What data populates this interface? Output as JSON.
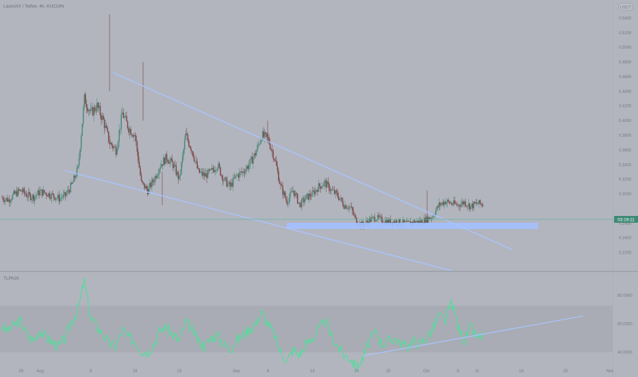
{
  "header": {
    "symbol_title": "LaunchX / Tether, 4h, KUCOIN",
    "currency_badge": "USDT"
  },
  "colors": {
    "background": "#b2b5be",
    "candle_up": "#4e8a7b",
    "candle_down": "#7d4a4a",
    "trendline": "#a9c4ff",
    "support_zone": "#a3c1ff",
    "indicator_line": "#4be09a",
    "indicator_band": "#a9acb4",
    "price_line": "#5fb49c",
    "current_price_tag": "#3f8a76"
  },
  "current_price_tag": "03:19:11",
  "indicator_label": "TLPh20",
  "chart_data": [
    {
      "type": "candlestick",
      "title": "LaunchX / Tether, 4h, KUCOIN",
      "ylim": [
        0.2,
        0.56
      ],
      "y_ticks": [
        "0.5400",
        "0.5200",
        "0.5000",
        "0.4800",
        "0.4600",
        "0.4400",
        "0.4200",
        "0.4000",
        "0.3800",
        "0.3600",
        "0.3400",
        "0.3200",
        "0.3000",
        "0.2600",
        "0.2400",
        "0.2200"
      ],
      "x_ticks": [
        "29",
        "Aug",
        "9",
        "16",
        "23",
        "Sep",
        "6",
        "13",
        "20",
        "25",
        "Oct",
        "8",
        "11",
        "18",
        "25",
        "Nov"
      ],
      "series": [
        {
          "values": [
            {
              "x": "Jul 26",
              "close": 0.295
            },
            {
              "x": "Jul 27",
              "close": 0.292
            },
            {
              "x": "Jul 28",
              "close": 0.3
            },
            {
              "x": "Jul 29",
              "close": 0.305
            },
            {
              "x": "Jul 30",
              "close": 0.298
            },
            {
              "x": "Jul 31",
              "close": 0.296
            },
            {
              "x": "Aug 1",
              "close": 0.303
            },
            {
              "x": "Aug 2",
              "close": 0.301
            },
            {
              "x": "Aug 3",
              "close": 0.298
            },
            {
              "x": "Aug 4",
              "close": 0.294
            },
            {
              "x": "Aug 5",
              "close": 0.298
            },
            {
              "x": "Aug 6",
              "close": 0.312
            },
            {
              "x": "Aug 7",
              "close": 0.335
            },
            {
              "x": "Aug 8",
              "close": 0.43
            },
            {
              "x": "Aug 9",
              "close": 0.41
            },
            {
              "x": "Aug 10",
              "close": 0.42
            },
            {
              "x": "Aug 11",
              "close": 0.4
            },
            {
              "x": "Aug 12",
              "close": 0.37
            },
            {
              "x": "Aug 13",
              "close": 0.36
            },
            {
              "x": "Aug 14",
              "close": 0.41
            },
            {
              "x": "Aug 15",
              "close": 0.39
            },
            {
              "x": "Aug 16",
              "close": 0.38
            },
            {
              "x": "Aug 17",
              "close": 0.315
            },
            {
              "x": "Aug 18",
              "close": 0.305
            },
            {
              "x": "Aug 19",
              "close": 0.32
            },
            {
              "x": "Aug 20",
              "close": 0.34
            },
            {
              "x": "Aug 21",
              "close": 0.35
            },
            {
              "x": "Aug 22",
              "close": 0.34
            },
            {
              "x": "Aug 23",
              "close": 0.32
            },
            {
              "x": "Aug 24",
              "close": 0.38
            },
            {
              "x": "Aug 25",
              "close": 0.36
            },
            {
              "x": "Aug 26",
              "close": 0.33
            },
            {
              "x": "Aug 27",
              "close": 0.325
            },
            {
              "x": "Aug 28",
              "close": 0.33
            },
            {
              "x": "Aug 29",
              "close": 0.34
            },
            {
              "x": "Aug 30",
              "close": 0.32
            },
            {
              "x": "Aug 31",
              "close": 0.31
            },
            {
              "x": "Sep 1",
              "close": 0.325
            },
            {
              "x": "Sep 2",
              "close": 0.33
            },
            {
              "x": "Sep 3",
              "close": 0.34
            },
            {
              "x": "Sep 4",
              "close": 0.355
            },
            {
              "x": "Sep 5",
              "close": 0.38
            },
            {
              "x": "Sep 6",
              "close": 0.375
            },
            {
              "x": "Sep 7",
              "close": 0.35
            },
            {
              "x": "Sep 8",
              "close": 0.31
            },
            {
              "x": "Sep 9",
              "close": 0.29
            },
            {
              "x": "Sep 10",
              "close": 0.305
            },
            {
              "x": "Sep 11",
              "close": 0.285
            },
            {
              "x": "Sep 12",
              "close": 0.295
            },
            {
              "x": "Sep 13",
              "close": 0.3
            },
            {
              "x": "Sep 14",
              "close": 0.31
            },
            {
              "x": "Sep 15",
              "close": 0.315
            },
            {
              "x": "Sep 16",
              "close": 0.305
            },
            {
              "x": "Sep 17",
              "close": 0.298
            },
            {
              "x": "Sep 18",
              "close": 0.285
            },
            {
              "x": "Sep 19",
              "close": 0.282
            },
            {
              "x": "Sep 20",
              "close": 0.262
            },
            {
              "x": "Sep 21",
              "close": 0.258
            },
            {
              "x": "Sep 22",
              "close": 0.264
            },
            {
              "x": "Sep 23",
              "close": 0.268
            },
            {
              "x": "Sep 24",
              "close": 0.264
            },
            {
              "x": "Sep 25",
              "close": 0.262
            },
            {
              "x": "Sep 26",
              "close": 0.263
            },
            {
              "x": "Sep 27",
              "close": 0.261
            },
            {
              "x": "Sep 28",
              "close": 0.259
            },
            {
              "x": "Sep 29",
              "close": 0.262
            },
            {
              "x": "Sep 30",
              "close": 0.262
            },
            {
              "x": "Oct 1",
              "close": 0.265
            },
            {
              "x": "Oct 2",
              "close": 0.27
            },
            {
              "x": "Oct 3",
              "close": 0.285
            },
            {
              "x": "Oct 4",
              "close": 0.29
            },
            {
              "x": "Oct 5",
              "close": 0.287
            },
            {
              "x": "Oct 6",
              "close": 0.285
            },
            {
              "x": "Oct 7",
              "close": 0.289
            },
            {
              "x": "Oct 8",
              "close": 0.283
            },
            {
              "x": "Oct 9",
              "close": 0.287
            },
            {
              "x": "Oct 10",
              "close": 0.286
            }
          ]
        }
      ]
    },
    {
      "type": "line",
      "title": "TLPh20",
      "ylim": [
        25,
        95
      ],
      "y_ticks": [
        "80.0000",
        "60.0000",
        "40.0000",
        "20.0000"
      ],
      "bands": [
        30,
        70
      ],
      "series": [
        {
          "values": [
            {
              "x": "Jul 26",
              "y": 58
            },
            {
              "x": "Jul 27",
              "y": 55
            },
            {
              "x": "Jul 28",
              "y": 60
            },
            {
              "x": "Jul 29",
              "y": 62
            },
            {
              "x": "Jul 30",
              "y": 52
            },
            {
              "x": "Jul 31",
              "y": 48
            },
            {
              "x": "Aug 1",
              "y": 56
            },
            {
              "x": "Aug 2",
              "y": 50
            },
            {
              "x": "Aug 3",
              "y": 47
            },
            {
              "x": "Aug 4",
              "y": 44
            },
            {
              "x": "Aug 5",
              "y": 50
            },
            {
              "x": "Aug 6",
              "y": 62
            },
            {
              "x": "Aug 7",
              "y": 70
            },
            {
              "x": "Aug 8",
              "y": 90
            },
            {
              "x": "Aug 9",
              "y": 64
            },
            {
              "x": "Aug 10",
              "y": 58
            },
            {
              "x": "Aug 11",
              "y": 52
            },
            {
              "x": "Aug 12",
              "y": 46
            },
            {
              "x": "Aug 13",
              "y": 44
            },
            {
              "x": "Aug 14",
              "y": 56
            },
            {
              "x": "Aug 15",
              "y": 50
            },
            {
              "x": "Aug 16",
              "y": 48
            },
            {
              "x": "Aug 17",
              "y": 41
            },
            {
              "x": "Aug 18",
              "y": 40
            },
            {
              "x": "Aug 19",
              "y": 46
            },
            {
              "x": "Aug 20",
              "y": 56
            },
            {
              "x": "Aug 21",
              "y": 58
            },
            {
              "x": "Aug 22",
              "y": 52
            },
            {
              "x": "Aug 23",
              "y": 48
            },
            {
              "x": "Aug 24",
              "y": 62
            },
            {
              "x": "Aug 25",
              "y": 56
            },
            {
              "x": "Aug 26",
              "y": 48
            },
            {
              "x": "Aug 27",
              "y": 44
            },
            {
              "x": "Aug 28",
              "y": 50
            },
            {
              "x": "Aug 29",
              "y": 52
            },
            {
              "x": "Aug 30",
              "y": 46
            },
            {
              "x": "Aug 31",
              "y": 42
            },
            {
              "x": "Sep 1",
              "y": 48
            },
            {
              "x": "Sep 2",
              "y": 52
            },
            {
              "x": "Sep 3",
              "y": 56
            },
            {
              "x": "Sep 4",
              "y": 60
            },
            {
              "x": "Sep 5",
              "y": 68
            },
            {
              "x": "Sep 6",
              "y": 60
            },
            {
              "x": "Sep 7",
              "y": 52
            },
            {
              "x": "Sep 8",
              "y": 40
            },
            {
              "x": "Sep 9",
              "y": 34
            },
            {
              "x": "Sep 10",
              "y": 42
            },
            {
              "x": "Sep 11",
              "y": 38
            },
            {
              "x": "Sep 12",
              "y": 46
            },
            {
              "x": "Sep 13",
              "y": 50
            },
            {
              "x": "Sep 14",
              "y": 56
            },
            {
              "x": "Sep 15",
              "y": 62
            },
            {
              "x": "Sep 16",
              "y": 52
            },
            {
              "x": "Sep 17",
              "y": 44
            },
            {
              "x": "Sep 18",
              "y": 38
            },
            {
              "x": "Sep 19",
              "y": 36
            },
            {
              "x": "Sep 20",
              "y": 29
            },
            {
              "x": "Sep 21",
              "y": 36
            },
            {
              "x": "Sep 22",
              "y": 48
            },
            {
              "x": "Sep 23",
              "y": 54
            },
            {
              "x": "Sep 24",
              "y": 46
            },
            {
              "x": "Sep 25",
              "y": 48
            },
            {
              "x": "Sep 26",
              "y": 50
            },
            {
              "x": "Sep 27",
              "y": 46
            },
            {
              "x": "Sep 28",
              "y": 44
            },
            {
              "x": "Sep 29",
              "y": 48
            },
            {
              "x": "Sep 30",
              "y": 46
            },
            {
              "x": "Oct 1",
              "y": 50
            },
            {
              "x": "Oct 2",
              "y": 56
            },
            {
              "x": "Oct 3",
              "y": 66
            },
            {
              "x": "Oct 4",
              "y": 62
            },
            {
              "x": "Oct 5",
              "y": 76
            },
            {
              "x": "Oct 6",
              "y": 58
            },
            {
              "x": "Oct 7",
              "y": 48
            },
            {
              "x": "Oct 8",
              "y": 58
            },
            {
              "x": "Oct 9",
              "y": 50
            },
            {
              "x": "Oct 10",
              "y": 52
            }
          ]
        }
      ]
    }
  ]
}
